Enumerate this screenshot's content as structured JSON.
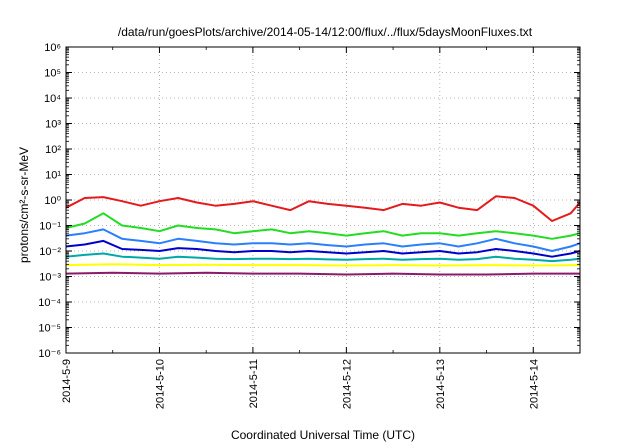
{
  "chart_data": {
    "type": "line",
    "title": "/data/run/goesPlots/archive/2014-05-14/12:00/flux/../flux/5daysMoonFluxes.txt",
    "xlabel": "Coordinated Universal Time (UTC)",
    "ylabel": "protons/cm²-s-sr-MeV",
    "yscale": "log",
    "ylim_exponents": [
      -6,
      6
    ],
    "ytick_labels": [
      "10⁻⁶",
      "10⁻⁵",
      "10⁻⁴",
      "10⁻³",
      "10⁻²",
      "10⁻¹",
      "10⁰",
      "10¹",
      "10²",
      "10³",
      "10⁴",
      "10⁵",
      "10⁶"
    ],
    "x_days": [
      "2014-5-9",
      "2014-5-10",
      "2014-5-11",
      "2014-5-12",
      "2014-5-13",
      "2014-5-14"
    ],
    "xlim_days": [
      0,
      5.5
    ],
    "grid": true,
    "series": [
      {
        "color": "#e41a1c",
        "x": [
          0,
          0.2,
          0.4,
          0.6,
          0.8,
          1.0,
          1.2,
          1.4,
          1.6,
          1.8,
          2.0,
          2.2,
          2.4,
          2.6,
          2.8,
          3.0,
          3.2,
          3.4,
          3.6,
          3.8,
          4.0,
          4.2,
          4.4,
          4.6,
          4.8,
          5.0,
          5.2,
          5.4,
          5.5
        ],
        "y": [
          0.5,
          1.2,
          1.3,
          0.9,
          0.6,
          0.9,
          1.2,
          0.8,
          0.6,
          0.7,
          0.9,
          0.6,
          0.4,
          0.9,
          0.7,
          0.6,
          0.5,
          0.4,
          0.7,
          0.6,
          0.8,
          0.5,
          0.4,
          1.4,
          1.2,
          0.6,
          0.15,
          0.3,
          0.8
        ]
      },
      {
        "color": "#22dd22",
        "x": [
          0,
          0.2,
          0.4,
          0.6,
          0.8,
          1.0,
          1.2,
          1.4,
          1.6,
          1.8,
          2.0,
          2.2,
          2.4,
          2.6,
          2.8,
          3.0,
          3.2,
          3.4,
          3.6,
          3.8,
          4.0,
          4.2,
          4.4,
          4.6,
          4.8,
          5.0,
          5.2,
          5.4,
          5.5
        ],
        "y": [
          0.08,
          0.12,
          0.3,
          0.1,
          0.08,
          0.06,
          0.1,
          0.08,
          0.07,
          0.05,
          0.06,
          0.07,
          0.05,
          0.06,
          0.05,
          0.04,
          0.05,
          0.06,
          0.04,
          0.05,
          0.05,
          0.04,
          0.05,
          0.06,
          0.05,
          0.04,
          0.03,
          0.04,
          0.05
        ]
      },
      {
        "color": "#2a7fff",
        "x": [
          0,
          0.2,
          0.4,
          0.6,
          0.8,
          1.0,
          1.2,
          1.4,
          1.6,
          1.8,
          2.0,
          2.2,
          2.4,
          2.6,
          2.8,
          3.0,
          3.2,
          3.4,
          3.6,
          3.8,
          4.0,
          4.2,
          4.4,
          4.6,
          4.8,
          5.0,
          5.2,
          5.4,
          5.5
        ],
        "y": [
          0.04,
          0.05,
          0.07,
          0.03,
          0.025,
          0.02,
          0.03,
          0.025,
          0.02,
          0.018,
          0.02,
          0.02,
          0.018,
          0.02,
          0.017,
          0.015,
          0.018,
          0.02,
          0.015,
          0.018,
          0.02,
          0.015,
          0.02,
          0.03,
          0.02,
          0.015,
          0.01,
          0.015,
          0.02
        ]
      },
      {
        "color": "#0000cc",
        "x": [
          0,
          0.2,
          0.4,
          0.6,
          0.8,
          1.0,
          1.2,
          1.4,
          1.6,
          1.8,
          2.0,
          2.2,
          2.4,
          2.6,
          2.8,
          3.0,
          3.2,
          3.4,
          3.6,
          3.8,
          4.0,
          4.2,
          4.4,
          4.6,
          4.8,
          5.0,
          5.2,
          5.4,
          5.5
        ],
        "y": [
          0.015,
          0.018,
          0.025,
          0.012,
          0.011,
          0.01,
          0.013,
          0.012,
          0.01,
          0.009,
          0.01,
          0.01,
          0.009,
          0.01,
          0.009,
          0.008,
          0.009,
          0.01,
          0.008,
          0.009,
          0.01,
          0.008,
          0.009,
          0.012,
          0.01,
          0.008,
          0.006,
          0.008,
          0.01
        ]
      },
      {
        "color": "#00a8a8",
        "x": [
          0,
          0.2,
          0.4,
          0.6,
          0.8,
          1.0,
          1.2,
          1.4,
          1.6,
          1.8,
          2.0,
          2.2,
          2.4,
          2.6,
          2.8,
          3.0,
          3.2,
          3.4,
          3.6,
          3.8,
          4.0,
          4.2,
          4.4,
          4.6,
          4.8,
          5.0,
          5.2,
          5.4,
          5.5
        ],
        "y": [
          0.006,
          0.007,
          0.008,
          0.006,
          0.0055,
          0.005,
          0.006,
          0.0055,
          0.005,
          0.0048,
          0.005,
          0.005,
          0.0048,
          0.005,
          0.0047,
          0.0045,
          0.0048,
          0.005,
          0.0045,
          0.0048,
          0.005,
          0.0045,
          0.0048,
          0.006,
          0.005,
          0.0045,
          0.004,
          0.0045,
          0.005
        ]
      },
      {
        "color": "#ffff00",
        "x": [
          0,
          0.5,
          1.0,
          1.5,
          2.0,
          2.5,
          3.0,
          3.5,
          4.0,
          4.5,
          5.0,
          5.5
        ],
        "y": [
          0.0028,
          0.003,
          0.0028,
          0.0029,
          0.0028,
          0.0028,
          0.0027,
          0.0028,
          0.0027,
          0.0028,
          0.0027,
          0.0028
        ]
      },
      {
        "color": "#8b1a6b",
        "x": [
          0,
          0.5,
          1.0,
          1.5,
          2.0,
          2.5,
          3.0,
          3.5,
          4.0,
          4.5,
          5.0,
          5.5
        ],
        "y": [
          0.0013,
          0.0014,
          0.0013,
          0.0014,
          0.0013,
          0.0013,
          0.0012,
          0.0013,
          0.0012,
          0.0012,
          0.0013,
          0.0013
        ]
      }
    ]
  }
}
